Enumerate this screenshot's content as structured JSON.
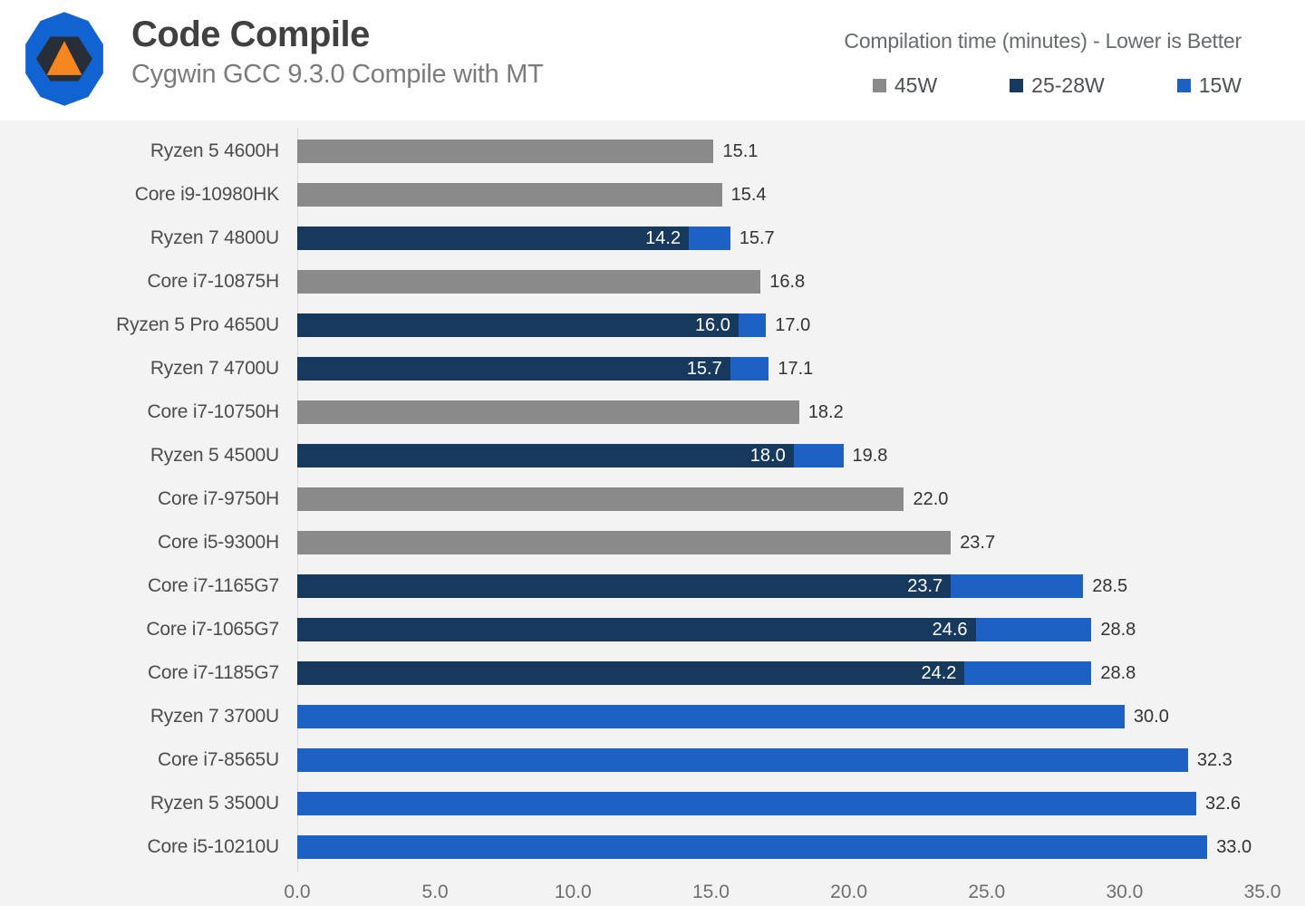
{
  "header": {
    "title": "Code Compile",
    "subtitle": "Cygwin GCC 9.3.0 Compile with MT",
    "right_title": "Compilation time (minutes) - Lower is Better",
    "legend": [
      {
        "label": "45W",
        "color": "#8a8a8a"
      },
      {
        "label": "25-28W",
        "color": "#17395e"
      },
      {
        "label": "15W",
        "color": "#1e61c5"
      }
    ]
  },
  "colors": {
    "series": {
      "45W": "#8a8a8a",
      "25-28W": "#17395e",
      "15W": "#1e61c5"
    },
    "header_background": "#ffffff",
    "chart_background": "#f3f3f4",
    "axis_line": "#d9d9d9",
    "logo_blue": "#1263d2",
    "logo_charcoal": "#272e37",
    "logo_orange": "#f6861f"
  },
  "chart_data": {
    "type": "bar",
    "orientation": "horizontal",
    "title": "Code Compile",
    "subtitle": "Cygwin GCC 9.3.0 Compile with MT",
    "value_axis_note": "Compilation time (minutes) - Lower is Better",
    "xlim": [
      0,
      35
    ],
    "x_ticks": [
      "0.0",
      "5.0",
      "10.0",
      "15.0",
      "20.0",
      "25.0",
      "30.0",
      "35.0"
    ],
    "grid": false,
    "legend_position": "top-right",
    "series_legend": [
      "45W",
      "25-28W",
      "15W"
    ],
    "rows": [
      {
        "label": "Ryzen 5 4600H",
        "bars": [
          {
            "series": "45W",
            "value": 15.1
          }
        ],
        "value_label": "15.1"
      },
      {
        "label": "Core i9-10980HK",
        "bars": [
          {
            "series": "45W",
            "value": 15.4
          }
        ],
        "value_label": "15.4"
      },
      {
        "label": "Ryzen 7 4800U",
        "bars": [
          {
            "series": "15W",
            "value": 15.7
          },
          {
            "series": "25-28W",
            "value": 14.2,
            "inside_label": "14.2"
          }
        ],
        "value_label": "15.7"
      },
      {
        "label": "Core i7-10875H",
        "bars": [
          {
            "series": "45W",
            "value": 16.8
          }
        ],
        "value_label": "16.8"
      },
      {
        "label": "Ryzen 5 Pro 4650U",
        "bars": [
          {
            "series": "15W",
            "value": 17.0
          },
          {
            "series": "25-28W",
            "value": 16.0,
            "inside_label": "16.0"
          }
        ],
        "value_label": "17.0"
      },
      {
        "label": "Ryzen 7 4700U",
        "bars": [
          {
            "series": "15W",
            "value": 17.1
          },
          {
            "series": "25-28W",
            "value": 15.7,
            "inside_label": "15.7"
          }
        ],
        "value_label": "17.1"
      },
      {
        "label": "Core i7-10750H",
        "bars": [
          {
            "series": "45W",
            "value": 18.2
          }
        ],
        "value_label": "18.2"
      },
      {
        "label": "Ryzen 5 4500U",
        "bars": [
          {
            "series": "15W",
            "value": 19.8
          },
          {
            "series": "25-28W",
            "value": 18.0,
            "inside_label": "18.0"
          }
        ],
        "value_label": "19.8"
      },
      {
        "label": "Core i7-9750H",
        "bars": [
          {
            "series": "45W",
            "value": 22.0
          }
        ],
        "value_label": "22.0"
      },
      {
        "label": "Core i5-9300H",
        "bars": [
          {
            "series": "45W",
            "value": 23.7
          }
        ],
        "value_label": "23.7"
      },
      {
        "label": "Core i7-1165G7",
        "bars": [
          {
            "series": "15W",
            "value": 28.5
          },
          {
            "series": "25-28W",
            "value": 23.7,
            "inside_label": "23.7"
          }
        ],
        "value_label": "28.5"
      },
      {
        "label": "Core i7-1065G7",
        "bars": [
          {
            "series": "15W",
            "value": 28.8
          },
          {
            "series": "25-28W",
            "value": 24.6,
            "inside_label": "24.6"
          }
        ],
        "value_label": "28.8"
      },
      {
        "label": "Core i7-1185G7",
        "bars": [
          {
            "series": "15W",
            "value": 28.8
          },
          {
            "series": "25-28W",
            "value": 24.2,
            "inside_label": "24.2"
          }
        ],
        "value_label": "28.8"
      },
      {
        "label": "Ryzen 7 3700U",
        "bars": [
          {
            "series": "15W",
            "value": 30.0
          }
        ],
        "value_label": "30.0"
      },
      {
        "label": "Core i7-8565U",
        "bars": [
          {
            "series": "15W",
            "value": 32.3
          }
        ],
        "value_label": "32.3"
      },
      {
        "label": "Ryzen 5 3500U",
        "bars": [
          {
            "series": "15W",
            "value": 32.6
          }
        ],
        "value_label": "32.6"
      },
      {
        "label": "Core i5-10210U",
        "bars": [
          {
            "series": "15W",
            "value": 33.0
          }
        ],
        "value_label": "33.0"
      }
    ]
  }
}
